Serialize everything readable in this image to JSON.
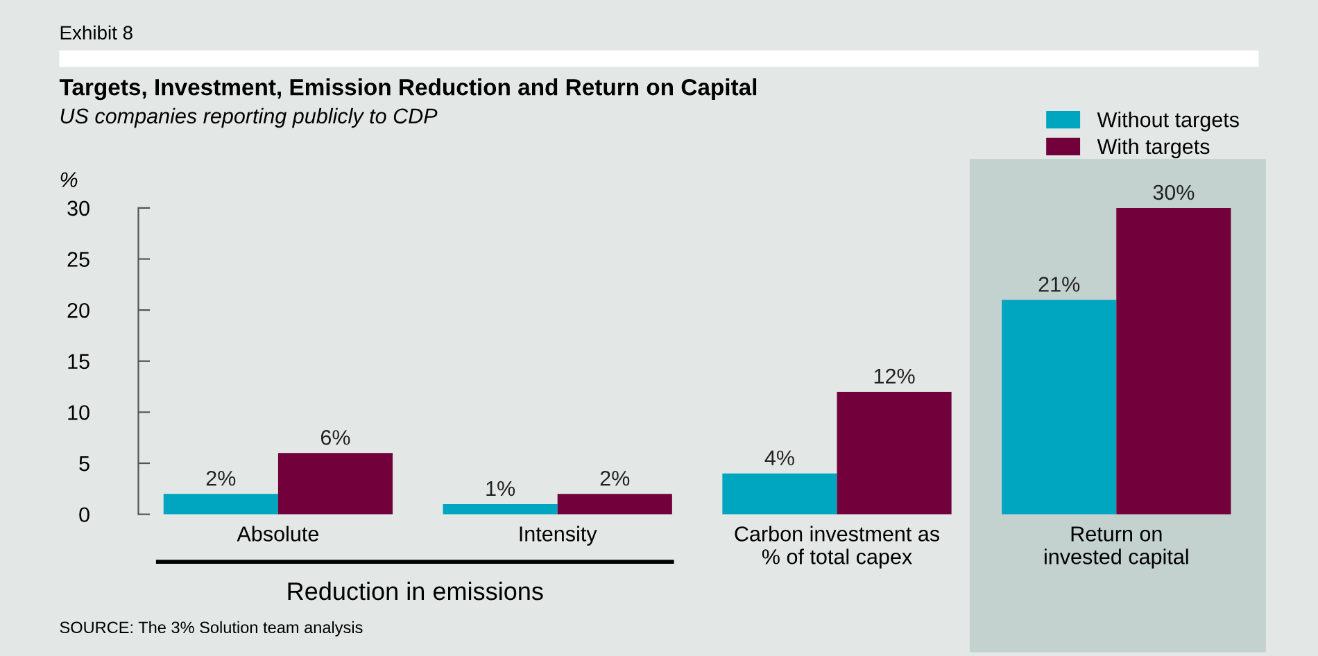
{
  "chart_data": {
    "type": "bar",
    "title": "Targets, Investment, Emission Reduction and Return on Capital",
    "subtitle": "US companies reporting publicly to CDP",
    "ylabel": "%",
    "categories": [
      "Absolute",
      "Intensity",
      "Carbon investment as\n% of total capex",
      "Return on\ninvested capital"
    ],
    "series": [
      {
        "name": "Without targets",
        "color": "#00a5bf",
        "values": [
          2,
          1,
          4,
          21
        ],
        "value_labels": [
          "2%",
          "1%",
          "4%",
          "21%"
        ]
      },
      {
        "name": "With targets",
        "color": "#71003b",
        "values": [
          6,
          2,
          12,
          30
        ],
        "value_labels": [
          "6%",
          "2%",
          "12%",
          "30%"
        ]
      }
    ],
    "ylim": [
      0,
      30
    ],
    "yticks": [
      0,
      5,
      10,
      15,
      20,
      25,
      30
    ],
    "grid": false,
    "legend": "top right",
    "bands": [
      {
        "axis": "x",
        "from": "Return on\ninvested capital",
        "to": "Return on\ninvested capital",
        "color": "#c3d1cf"
      }
    ],
    "annotations": [
      "Exhibit 8",
      "Reduction in emissions",
      "SOURCE: The 3% Solution team analysis"
    ]
  }
}
